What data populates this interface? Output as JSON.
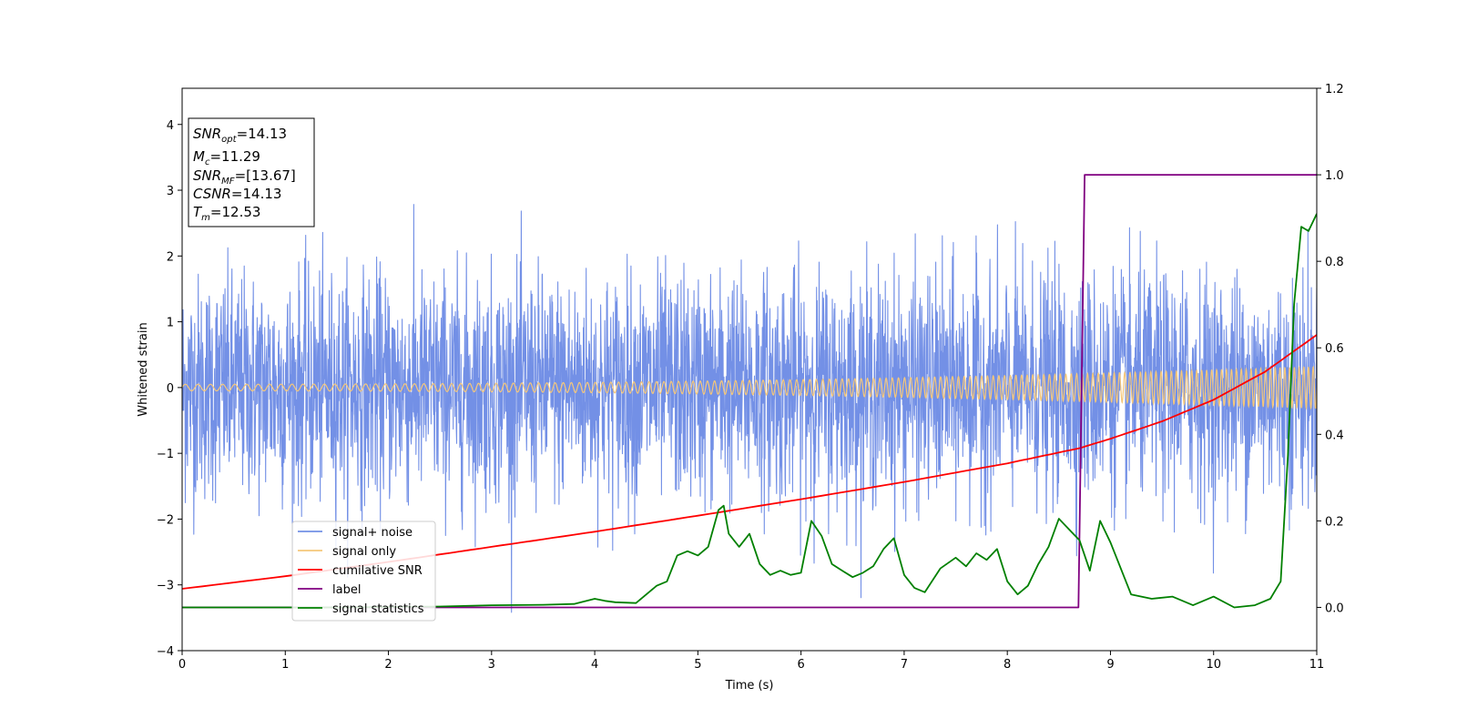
{
  "chart_data": {
    "type": "line",
    "xlabel": "Time (s)",
    "ylabel": "Whitened strain",
    "xlim": [
      0,
      11
    ],
    "ylim": [
      -4,
      4.55
    ],
    "ylim_right": [
      -0.1,
      1.2
    ],
    "x_ticks": [
      0,
      1,
      2,
      3,
      4,
      5,
      6,
      7,
      8,
      9,
      10,
      11
    ],
    "y_ticks": [
      -4,
      -3,
      -2,
      -1,
      0,
      1,
      2,
      3,
      4
    ],
    "y_ticks_right": [
      0.0,
      0.2,
      0.4,
      0.6,
      0.8,
      1.0,
      1.2
    ],
    "grid": false,
    "legend_position": "lower-left",
    "annotation_box": {
      "position": "top-left",
      "lines": [
        {
          "base": "SNR",
          "sub": "opt",
          "value": "=14.13"
        },
        {
          "base": "M",
          "sub": "c",
          "value": "=11.29"
        },
        {
          "base": "SNR",
          "sub": "MF",
          "value": "=[13.67]"
        },
        {
          "base": "CSNR",
          "sub": "",
          "value": "=14.13"
        },
        {
          "base": "T",
          "sub": "m",
          "value": "=12.53"
        }
      ]
    },
    "series": [
      {
        "name": "signal+ noise",
        "axis": "left",
        "color": "#7390e6",
        "kind": "noise",
        "std": 0.85,
        "spike_envelope": [
          -3.6,
          4.0
        ]
      },
      {
        "name": "signal only",
        "axis": "left",
        "color": "#f5c77a",
        "kind": "chirp",
        "amplitude_start": 0.05,
        "amplitude_end": 0.32,
        "freq_start_hz": 8,
        "freq_end_hz": 22
      },
      {
        "name": "cumilative SNR",
        "axis": "right",
        "color": "#ff0000",
        "x": [
          0,
          1,
          2,
          3,
          4,
          5,
          6,
          7,
          8,
          8.7,
          9,
          9.5,
          10,
          10.5,
          11
        ],
        "values": [
          0.043,
          0.072,
          0.105,
          0.14,
          0.175,
          0.212,
          0.25,
          0.29,
          0.333,
          0.368,
          0.39,
          0.43,
          0.48,
          0.545,
          0.63
        ]
      },
      {
        "name": "label",
        "axis": "right",
        "color": "#800080",
        "x": [
          0,
          8.69,
          8.75,
          11
        ],
        "values": [
          0.0,
          0.0,
          1.0,
          1.0
        ]
      },
      {
        "name": "signal statistics",
        "axis": "right",
        "color": "#008000",
        "x": [
          0,
          0.5,
          1,
          1.5,
          2,
          2.5,
          3,
          3.5,
          3.8,
          4.0,
          4.1,
          4.2,
          4.4,
          4.6,
          4.7,
          4.8,
          4.9,
          5.0,
          5.1,
          5.2,
          5.25,
          5.3,
          5.4,
          5.5,
          5.6,
          5.7,
          5.8,
          5.9,
          6.0,
          6.1,
          6.2,
          6.3,
          6.4,
          6.5,
          6.6,
          6.7,
          6.8,
          6.9,
          7.0,
          7.1,
          7.2,
          7.35,
          7.5,
          7.6,
          7.7,
          7.8,
          7.9,
          8.0,
          8.1,
          8.2,
          8.3,
          8.4,
          8.5,
          8.6,
          8.7,
          8.8,
          8.9,
          9.0,
          9.1,
          9.2,
          9.4,
          9.6,
          9.8,
          10.0,
          10.2,
          10.4,
          10.55,
          10.65,
          10.72,
          10.78,
          10.85,
          10.92,
          11.0
        ],
        "values": [
          0.0,
          0.0,
          0.0,
          0.0,
          0.001,
          0.002,
          0.005,
          0.006,
          0.008,
          0.02,
          0.015,
          0.012,
          0.01,
          0.05,
          0.06,
          0.12,
          0.13,
          0.12,
          0.14,
          0.225,
          0.235,
          0.17,
          0.14,
          0.17,
          0.1,
          0.075,
          0.085,
          0.075,
          0.08,
          0.2,
          0.165,
          0.1,
          0.085,
          0.07,
          0.08,
          0.095,
          0.135,
          0.16,
          0.075,
          0.045,
          0.035,
          0.09,
          0.115,
          0.095,
          0.125,
          0.11,
          0.135,
          0.06,
          0.03,
          0.05,
          0.1,
          0.14,
          0.205,
          0.18,
          0.155,
          0.085,
          0.2,
          0.15,
          0.09,
          0.03,
          0.02,
          0.025,
          0.005,
          0.025,
          0.0,
          0.005,
          0.02,
          0.06,
          0.35,
          0.7,
          0.88,
          0.87,
          0.91
        ]
      }
    ]
  }
}
